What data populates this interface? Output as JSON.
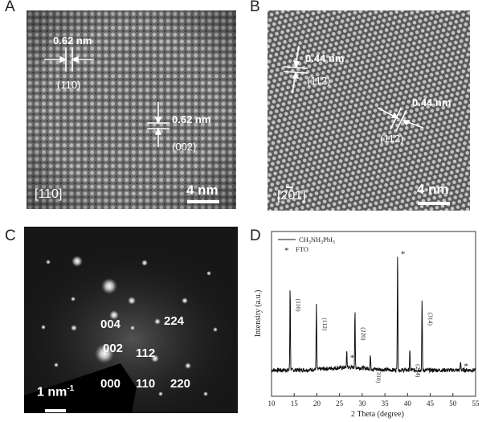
{
  "panel_a": {
    "letter": "A",
    "d1": "0.62 nm",
    "h1": "(110)",
    "d2": "0.62 nm",
    "h2": "(002)",
    "zone": "[110]",
    "scale": "4 nm"
  },
  "panel_b": {
    "letter": "B",
    "d1": "0.44 nm",
    "h1": "(112)",
    "d2": "0.44 nm",
    "h2": "(112)",
    "zone": "[201]",
    "scale": "4 nm"
  },
  "panel_c": {
    "letter": "C",
    "spots": [
      "004",
      "224",
      "002",
      "112",
      "000",
      "110",
      "220"
    ],
    "scale": "1 nm",
    "scale_sup": "-1"
  },
  "panel_d": {
    "letter": "D",
    "legend_line": "CH3NH3PbI3",
    "legend_star": "FTO",
    "star": "*",
    "peaks": [
      "(110)",
      "(112)",
      "(220)",
      "(310)",
      "(224)",
      "(314)"
    ]
  },
  "chart_data": {
    "type": "line",
    "xlabel": "2 Theta (degree)",
    "ylabel": "Intensity (a.u.)",
    "xlim": [
      10,
      55
    ],
    "xticks": [
      10,
      15,
      20,
      25,
      30,
      35,
      40,
      45,
      50,
      55
    ],
    "yticks_shown": false,
    "legend_position": "top-left",
    "series": [
      {
        "name": "CH3NH3PbI3",
        "peaks": [
          {
            "x": 14.1,
            "label": "(110)",
            "intensity": 0.62
          },
          {
            "x": 19.9,
            "label": "(112)",
            "intensity": 0.48
          },
          {
            "x": 28.4,
            "label": "(220)",
            "intensity": 0.41
          },
          {
            "x": 31.8,
            "label": "(310)",
            "intensity": 0.1
          },
          {
            "x": 40.5,
            "label": "(224)",
            "intensity": 0.14
          },
          {
            "x": 43.2,
            "label": "(314)",
            "intensity": 0.52
          }
        ]
      },
      {
        "name": "FTO",
        "peaks": [
          {
            "x": 26.6,
            "intensity": 0.12
          },
          {
            "x": 37.8,
            "intensity": 0.88
          },
          {
            "x": 51.7,
            "intensity": 0.06
          }
        ]
      }
    ]
  }
}
